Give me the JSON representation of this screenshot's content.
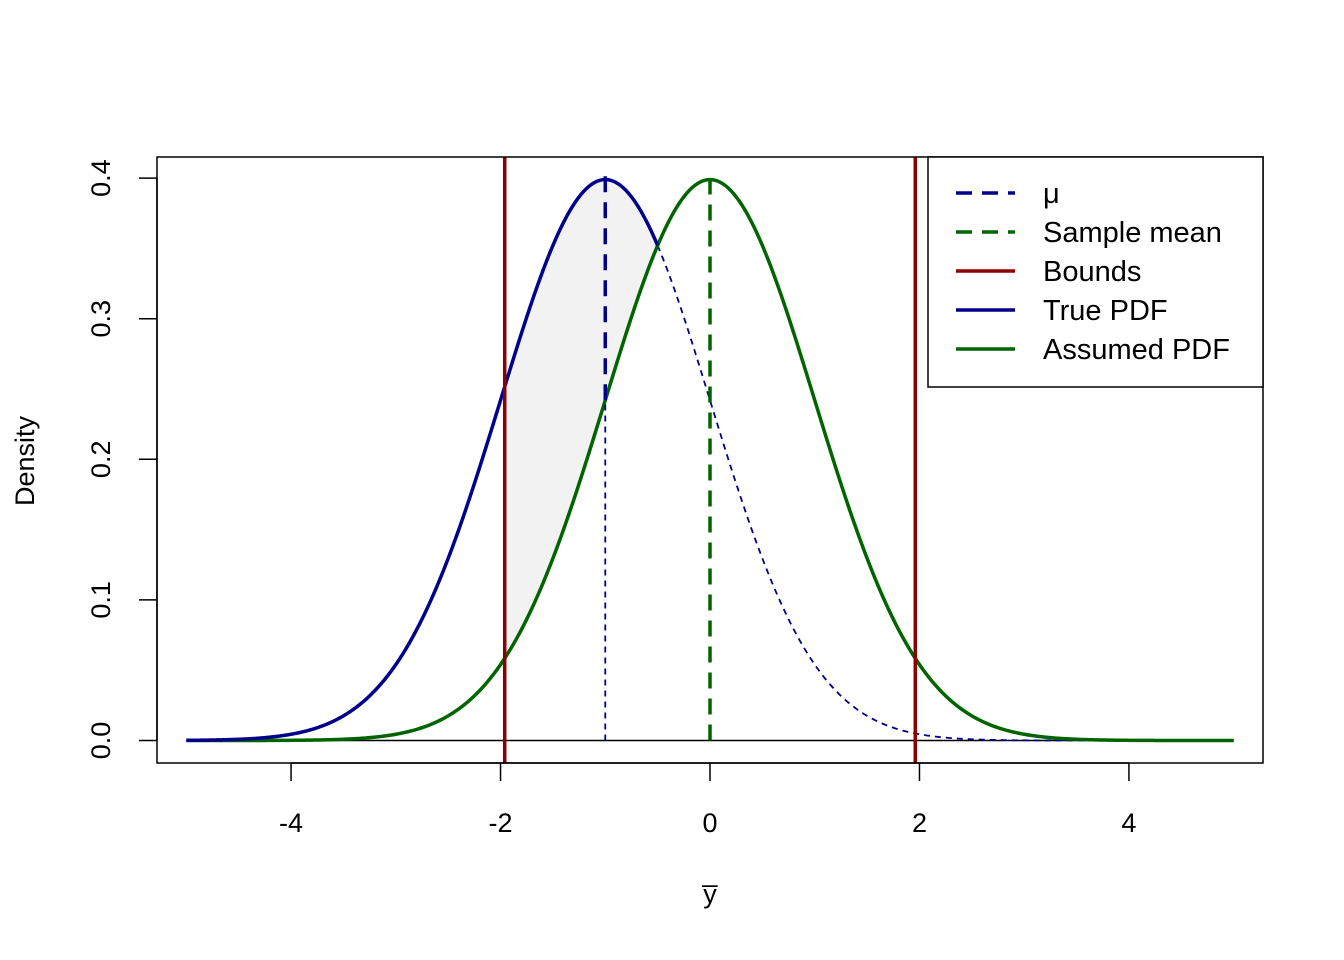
{
  "chart_data": {
    "type": "line",
    "xlabel": "y̅",
    "ylabel": "Density",
    "xlim": [
      -5.28,
      5.28
    ],
    "ylim": [
      -0.016,
      0.415
    ],
    "x_ticks": [
      -4,
      -2,
      0,
      2,
      4
    ],
    "x_tick_labels": [
      "-4",
      "-2",
      "0",
      "2",
      "4"
    ],
    "y_ticks": [
      0.0,
      0.1,
      0.2,
      0.3,
      0.4
    ],
    "y_tick_labels": [
      "0.0",
      "0.1",
      "0.2",
      "0.3",
      "0.4"
    ],
    "grid": false,
    "legend_position": "top-right",
    "colors": {
      "mu": "#00008B",
      "sample_mean": "#006400",
      "bounds": "#8B0000",
      "true_pdf": "#00008B",
      "assumed_pdf": "#006400",
      "shade": "#f2f2f2"
    },
    "mu": -1,
    "sample_mean": 0,
    "bounds": [
      -1.96,
      1.96
    ],
    "sd": 1,
    "x_range": [
      -5,
      5
    ],
    "shaded_region": "between True PDF and Assumed PDF from the lower bound to -0.5",
    "series": [
      {
        "name": "True PDF",
        "distribution": "normal",
        "mean": -1,
        "sd": 1
      },
      {
        "name": "Assumed PDF",
        "distribution": "normal",
        "mean": 0,
        "sd": 1
      }
    ],
    "legend": [
      {
        "label": "μ",
        "style": "dashed",
        "color": "#00008B"
      },
      {
        "label": "Sample mean",
        "style": "dashed",
        "color": "#006400"
      },
      {
        "label": "Bounds",
        "style": "solid",
        "color": "#8B0000"
      },
      {
        "label": "True PDF",
        "style": "solid",
        "color": "#00008B"
      },
      {
        "label": "Assumed PDF",
        "style": "solid",
        "color": "#006400"
      }
    ]
  }
}
